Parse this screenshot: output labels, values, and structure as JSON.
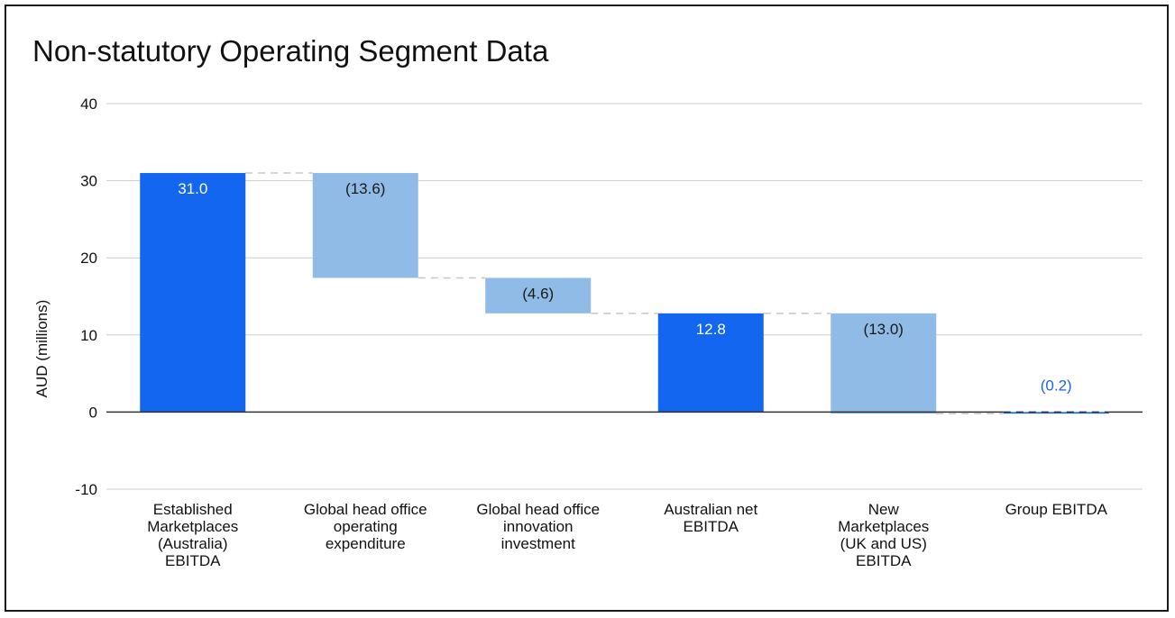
{
  "chart_data": {
    "type": "bar",
    "subtype": "waterfall",
    "title": "Non-statutory Operating Segment Data",
    "xlabel": "",
    "ylabel": "AUD (millions)",
    "ylim": [
      -10,
      40
    ],
    "yticks": [
      "-10",
      "0",
      "10",
      "20",
      "30",
      "40"
    ],
    "grid": true,
    "legend": "none",
    "categories": [
      [
        "Established",
        "Marketplaces",
        "(Australia)",
        "EBITDA"
      ],
      [
        "Global head office",
        "operating",
        "expenditure"
      ],
      [
        "Global head office",
        "innovation",
        "investment"
      ],
      [
        "Australian net",
        "EBITDA"
      ],
      [
        "New",
        "Marketplaces",
        "(UK and US)",
        "EBITDA"
      ],
      [
        "Group EBITDA"
      ]
    ],
    "bars": [
      {
        "start": 0,
        "end": 31.0,
        "kind": "total",
        "label": "31.0"
      },
      {
        "start": 31.0,
        "end": 17.4,
        "kind": "decrease",
        "label": "(13.6)"
      },
      {
        "start": 17.4,
        "end": 12.8,
        "kind": "decrease",
        "label": "(4.6)"
      },
      {
        "start": 0,
        "end": 12.8,
        "kind": "total",
        "label": "12.8"
      },
      {
        "start": 12.8,
        "end": -0.2,
        "kind": "decrease",
        "label": "(13.0)"
      },
      {
        "start": 0,
        "end": -0.2,
        "kind": "total",
        "label": "(0.2)"
      }
    ],
    "colors": {
      "total": "#1366f0",
      "decrease": "#8fbbe6",
      "total_label": "#ffffff",
      "decrease_label": "#1a1a1a",
      "small_total_label": "#1a66e8",
      "grid": "#cccccc",
      "baseline": "#333333",
      "connector": "#c8c8c8"
    }
  }
}
